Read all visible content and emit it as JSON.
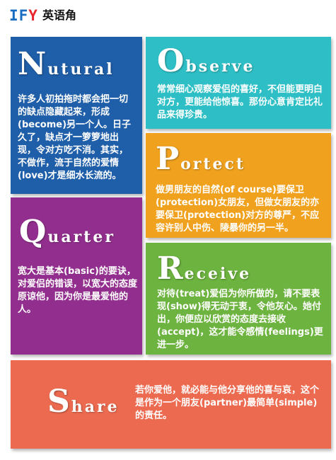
{
  "logo": {
    "mark_a": "IF",
    "mark_b": "Y",
    "text": "英语角"
  },
  "cards": {
    "natural": {
      "initial": "N",
      "rest": "utural",
      "body": "许多人初拍拖时都会把一切的缺点隐藏起来，形成(become)另一个人。日子久了，缺点才一箩箩地出现，令对方吃不消。其实，不做作，流于自然的爱情(love)才是细水长流的。",
      "color": "#1f5ea8"
    },
    "observe": {
      "initial": "O",
      "rest": "bserve",
      "body": "常常细心观察爱侣的喜好，不但能更明白对方，更能给他惊喜。那份心意肯定比礼品来得珍贵。",
      "color": "#2ebfc6"
    },
    "protect": {
      "initial": "P",
      "rest": "ortect",
      "body": "做男朋友的自然(of course)要保卫(protection)女朋友，但做女朋友的亦要保卫(protection)对方的尊严，不应容许别人中伤、陵暴你的另一半。",
      "color": "#f0a21f"
    },
    "quarter": {
      "initial": "Q",
      "rest": "uarter",
      "body": "宽大是基本(basic)的要诀，对爱侣的错误，以宽大的态度原谅他，因为你是最爱他的人。",
      "color": "#922f8e"
    },
    "receive": {
      "initial": "R",
      "rest": "eceive",
      "body": "对待(treat)爱侣为你所做的，请不要表现(show)得无动于衷，令他灰心。她付出，你便应以欣赏的态度去接收(accept)，这才能令感情(feelings)更进一步。",
      "color": "#6db33f"
    },
    "share": {
      "initial": "S",
      "rest": "hare",
      "body": "若你爱他，就必能与他分享他的喜与哀，这个是作为一个朋友(partner)最简单(simple)的责任。",
      "color": "#ec6b50"
    }
  }
}
